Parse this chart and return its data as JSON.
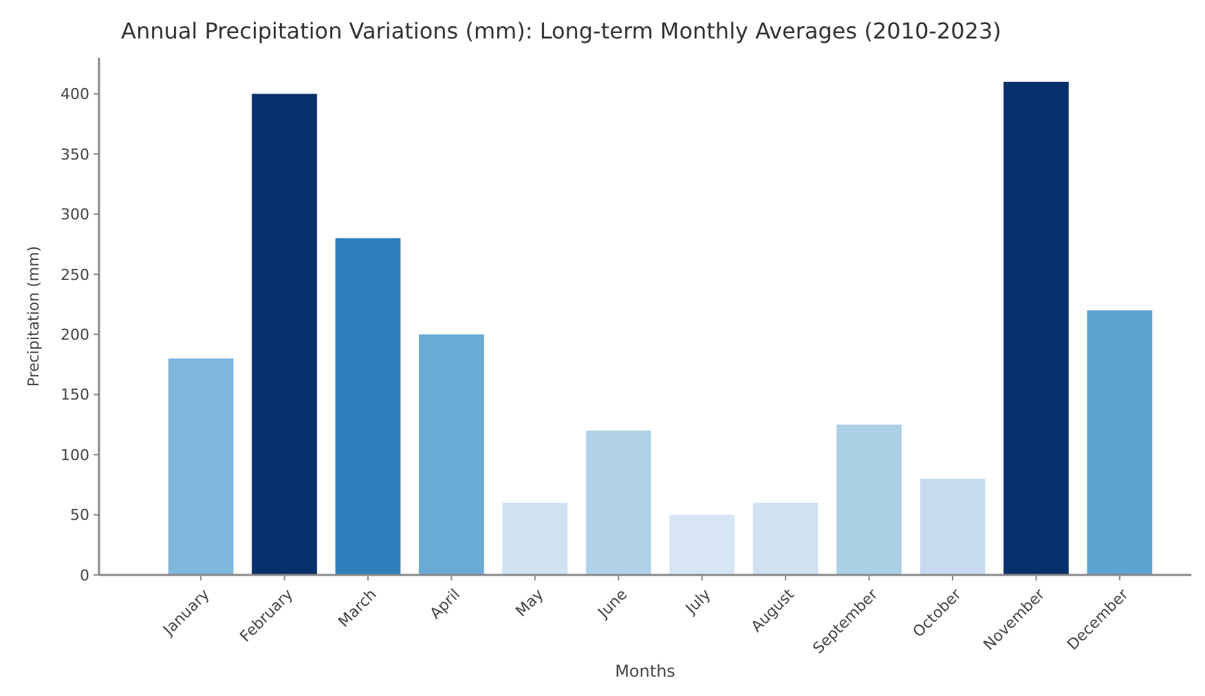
{
  "chart_data": {
    "type": "bar",
    "title": "Annual Precipitation Variations (mm): Long-term Monthly Averages (2010-2023)",
    "xlabel": "Months",
    "ylabel": "Precipitation (mm)",
    "categories": [
      "January",
      "February",
      "March",
      "April",
      "May",
      "June",
      "July",
      "August",
      "September",
      "October",
      "November",
      "December"
    ],
    "values": [
      180,
      400,
      280,
      200,
      60,
      120,
      50,
      60,
      125,
      80,
      410,
      220
    ],
    "colors": [
      "#7fb6dc",
      "#08306b",
      "#2f7ebc",
      "#68acd5",
      "#d0e1f2",
      "#b0d2e8",
      "#d7e6f5",
      "#d0e1f2",
      "#abd0e6",
      "#c6dbef",
      "#08306b",
      "#5da3d0"
    ],
    "ylim": [
      0,
      430
    ],
    "yticks": [
      0,
      50,
      100,
      150,
      200,
      250,
      300,
      350,
      400
    ]
  }
}
